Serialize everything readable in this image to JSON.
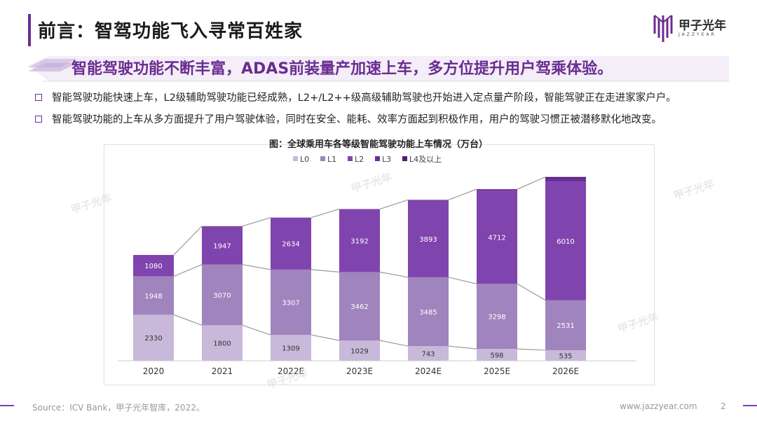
{
  "header": {
    "title": "前言：智驾功能飞入寻常百姓家",
    "logo_text": "甲子光年",
    "logo_sub": "JAZZYEAR",
    "headline": "智能驾驶功能不断丰富，ADAS前装量产加速上车，多方位提升用户驾乘体验。"
  },
  "bullets": [
    "智能驾驶功能快速上车，L2级辅助驾驶功能已经成熟，L2+/L2++级高级辅助驾驶也开始进入定点量产阶段，智能驾驶正在走进家家户户。",
    "智能驾驶功能的上车从多方面提升了用户驾驶体验，同时在安全、能耗、效率方面起到积极作用，用户的驾驶习惯正被潜移默化地改变。"
  ],
  "footer": {
    "source": "Source：ICV Bank，甲子光年智库，2022。",
    "site": "www.jazzyear.com",
    "page": "2"
  },
  "colors": {
    "accent": "#6b2c91",
    "L0": "#c8b8d9",
    "L1": "#9f84bd",
    "L2": "#8044ae",
    "L3": "#6a2c99",
    "L4": "#4d1c78"
  },
  "chart_data": {
    "type": "bar",
    "stacked": true,
    "title": "图：全球乘用车各等级智能驾驶功能上车情况（万台）",
    "categories": [
      "2020",
      "2021",
      "2022E",
      "2023E",
      "2024E",
      "2025E",
      "2026E"
    ],
    "series": [
      {
        "name": "L0",
        "values": [
          2330,
          1800,
          1309,
          1029,
          743,
          598,
          535
        ]
      },
      {
        "name": "L1",
        "values": [
          1948,
          3070,
          3307,
          3462,
          3485,
          3298,
          2531
        ]
      },
      {
        "name": "L2",
        "values": [
          1080,
          1947,
          2634,
          3192,
          3893,
          4712,
          6010
        ]
      },
      {
        "name": "L3",
        "values": [
          0,
          0,
          0,
          0,
          20,
          60,
          140
        ]
      },
      {
        "name": "L4及以上",
        "values": [
          0,
          0,
          0,
          0,
          5,
          20,
          90
        ]
      }
    ],
    "data_labels": [
      [
        "2330",
        "1800",
        "1309",
        "1029",
        "743",
        "598",
        "535"
      ],
      [
        "1948",
        "3070",
        "3307",
        "3462",
        "3485",
        "3298",
        "2531"
      ],
      [
        "1080",
        "1947",
        "2634",
        "3192",
        "3893",
        "4712",
        "6010"
      ]
    ],
    "legend_position": "top",
    "grid": false,
    "ylim": [
      0,
      9400
    ]
  }
}
